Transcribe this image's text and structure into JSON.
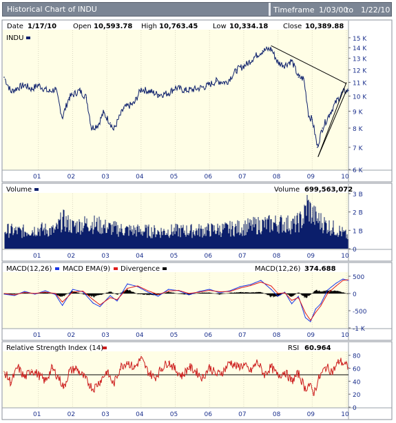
{
  "window": {
    "title": "Historical Chart of INDU",
    "timeframe_label": "Timeframe",
    "timeframe_from": "1/03/00",
    "timeframe_to_word": "to",
    "timeframe_end": "1/22/10"
  },
  "quote": {
    "date_label": "Date",
    "date": "1/17/10",
    "open_label": "Open",
    "open": "10,593.78",
    "high_label": "High",
    "high": "10,763.45",
    "low_label": "Low",
    "low": "10,334.18",
    "close_label": "Close",
    "close": "10,389.88"
  },
  "colors": {
    "plot_bg": "#fffee6",
    "price": "#0b1e6b",
    "volume": "#0b1e6b",
    "macd": "#1a36e6",
    "macd_ema": "#e01b1b",
    "divergence": "#000000",
    "rsi": "#cc1b1b",
    "panel_border": "#8a8f98"
  },
  "chart_data": [
    {
      "type": "line",
      "title": "INDU",
      "legend": [
        "INDU"
      ],
      "x_ticks": [
        "01",
        "02",
        "03",
        "04",
        "05",
        "06",
        "07",
        "08",
        "09",
        "10"
      ],
      "y_scale": "log",
      "ylim": [
        6000,
        15500
      ],
      "y_ticks": [
        "15 K",
        "14 K",
        "13 K",
        "12 K",
        "11 K",
        "10 K",
        "9 K",
        "8 K",
        "7 K",
        "6 K"
      ],
      "y_tick_values": [
        15000,
        14000,
        13000,
        12000,
        11000,
        10000,
        9000,
        8000,
        7000,
        6000
      ],
      "series": [
        {
          "name": "INDU",
          "x": [
            2000.0,
            2000.2,
            2000.4,
            2000.6,
            2000.8,
            2001.0,
            2001.3,
            2001.5,
            2001.7,
            2001.9,
            2002.2,
            2002.4,
            2002.55,
            2002.75,
            2002.9,
            2003.1,
            2003.2,
            2003.5,
            2003.8,
            2004.0,
            2004.3,
            2004.5,
            2004.8,
            2005.0,
            2005.3,
            2005.6,
            2005.9,
            2006.2,
            2006.5,
            2006.8,
            2007.1,
            2007.3,
            2007.55,
            2007.8,
            2008.0,
            2008.2,
            2008.4,
            2008.6,
            2008.75,
            2008.9,
            2009.0,
            2009.15,
            2009.3,
            2009.5,
            2009.7,
            2009.9,
            2010.06
          ],
          "values": [
            11400,
            10300,
            10600,
            10800,
            10500,
            10800,
            10300,
            10500,
            8600,
            9900,
            10400,
            9900,
            8000,
            8200,
            8900,
            8300,
            7900,
            9200,
            9500,
            10500,
            10300,
            10100,
            10200,
            10600,
            10400,
            10500,
            10700,
            11100,
            11000,
            12000,
            12500,
            13100,
            13700,
            13900,
            12600,
            12400,
            12800,
            11400,
            11300,
            8700,
            8500,
            7000,
            8000,
            8800,
            9600,
            10300,
            10389.88
          ]
        }
      ],
      "trendlines": [
        {
          "x": [
            2007.8,
            2010.0
          ],
          "y": [
            14200,
            10900
          ]
        },
        {
          "x": [
            2009.17,
            2010.0
          ],
          "y": [
            6550,
            11000
          ]
        },
        {
          "x": [
            2009.17,
            2010.0
          ],
          "y": [
            6550,
            10400
          ]
        }
      ]
    },
    {
      "type": "bar",
      "title": "Volume",
      "legend": [
        "Volume"
      ],
      "readout_label": "Volume",
      "readout_value": "699,563,072",
      "ylim": [
        0,
        3000000000
      ],
      "y_ticks": [
        "3 B",
        "2 B",
        "1 B",
        "0"
      ],
      "y_tick_values": [
        3000000000,
        2000000000,
        1000000000,
        0
      ],
      "x_ticks": [
        "01",
        "02",
        "03",
        "04",
        "05",
        "06",
        "07",
        "08",
        "09",
        "10"
      ],
      "series": [
        {
          "name": "Volume",
          "x": [
            2000.0,
            2000.5,
            2001.0,
            2001.5,
            2001.7,
            2002.0,
            2002.5,
            2002.8,
            2003.0,
            2003.5,
            2004.0,
            2004.5,
            2005.0,
            2005.5,
            2006.0,
            2006.5,
            2007.0,
            2007.5,
            2007.8,
            2008.0,
            2008.5,
            2008.75,
            2008.85,
            2009.0,
            2009.2,
            2009.5,
            2009.8,
            2010.06
          ],
          "values": [
            1100000000,
            1000000000,
            1150000000,
            1050000000,
            1700000000,
            1300000000,
            1500000000,
            1350000000,
            1250000000,
            1100000000,
            1050000000,
            1000000000,
            1050000000,
            1050000000,
            1100000000,
            1150000000,
            1250000000,
            1400000000,
            1450000000,
            1500000000,
            1400000000,
            1800000000,
            2600000000,
            2000000000,
            1650000000,
            1300000000,
            1050000000,
            699563072
          ]
        }
      ]
    },
    {
      "type": "line",
      "title": "MACD(12,26)",
      "legend": [
        "MACD(12,26)",
        "MACD EMA(9)",
        "Divergence"
      ],
      "readout_label": "MACD(12,26)",
      "readout_value": "374.688",
      "ylim": [
        -1000,
        600
      ],
      "y_ticks": [
        "500",
        "0",
        "-500",
        "-1 K"
      ],
      "y_tick_values": [
        500,
        0,
        -500,
        -1000
      ],
      "x_ticks": [
        "01",
        "02",
        "03",
        "04",
        "05",
        "06",
        "07",
        "08",
        "09",
        "10"
      ],
      "x": [
        2000.0,
        2000.3,
        2000.6,
        2000.9,
        2001.2,
        2001.5,
        2001.7,
        2002.0,
        2002.3,
        2002.6,
        2002.8,
        2003.1,
        2003.3,
        2003.6,
        2003.9,
        2004.2,
        2004.5,
        2004.8,
        2005.1,
        2005.4,
        2005.7,
        2006.0,
        2006.3,
        2006.6,
        2006.9,
        2007.2,
        2007.5,
        2007.8,
        2008.0,
        2008.2,
        2008.4,
        2008.6,
        2008.8,
        2008.95,
        2009.1,
        2009.25,
        2009.45,
        2009.7,
        2009.9,
        2010.06
      ],
      "series": [
        {
          "name": "MACD(12,26)",
          "values": [
            -20,
            -60,
            60,
            -20,
            80,
            -30,
            -350,
            120,
            50,
            -280,
            -380,
            -60,
            -220,
            280,
            200,
            40,
            -80,
            120,
            80,
            -40,
            60,
            120,
            20,
            80,
            200,
            260,
            380,
            120,
            -80,
            40,
            -300,
            -80,
            -700,
            -820,
            -450,
            -300,
            100,
            300,
            420,
            374.688
          ]
        },
        {
          "name": "MACD EMA(9)",
          "values": [
            0,
            -40,
            30,
            0,
            40,
            0,
            -250,
            40,
            70,
            -180,
            -330,
            -120,
            -180,
            150,
            220,
            80,
            -30,
            70,
            90,
            0,
            40,
            90,
            50,
            60,
            160,
            230,
            330,
            220,
            0,
            20,
            -200,
            -120,
            -560,
            -780,
            -550,
            -360,
            0,
            220,
            380,
            400
          ]
        },
        {
          "name": "Divergence",
          "values": [
            -20,
            -20,
            30,
            -20,
            40,
            -30,
            -100,
            80,
            -20,
            -100,
            -50,
            60,
            -40,
            130,
            -20,
            -40,
            -50,
            50,
            -10,
            -40,
            20,
            30,
            -30,
            20,
            40,
            30,
            50,
            -100,
            -80,
            20,
            -100,
            40,
            -140,
            -40,
            100,
            60,
            100,
            80,
            40,
            -25
          ]
        }
      ]
    },
    {
      "type": "line",
      "title": "Relative Strength Index (14)",
      "legend": [
        "Relative Strength Index (14)"
      ],
      "readout_label": "RSI",
      "readout_value": "60.964",
      "ylim": [
        0,
        85
      ],
      "y_ticks": [
        "80",
        "60",
        "40",
        "20",
        "0"
      ],
      "y_tick_values": [
        80,
        60,
        40,
        20,
        0
      ],
      "reference_line": 50,
      "x_ticks": [
        "01",
        "02",
        "03",
        "04",
        "05",
        "06",
        "07",
        "08",
        "09",
        "10"
      ],
      "series": [
        {
          "name": "Relative Strength Index (14)",
          "x": [
            2000.0,
            2000.2,
            2000.4,
            2000.6,
            2000.8,
            2001.0,
            2001.2,
            2001.4,
            2001.6,
            2001.75,
            2001.9,
            2002.1,
            2002.3,
            2002.5,
            2002.6,
            2002.8,
            2003.0,
            2003.2,
            2003.4,
            2003.6,
            2003.8,
            2004.0,
            2004.2,
            2004.4,
            2004.6,
            2004.8,
            2005.0,
            2005.2,
            2005.4,
            2005.6,
            2005.8,
            2006.0,
            2006.2,
            2006.4,
            2006.6,
            2006.8,
            2007.0,
            2007.2,
            2007.4,
            2007.6,
            2007.8,
            2008.0,
            2008.2,
            2008.4,
            2008.6,
            2008.8,
            2008.9,
            2009.05,
            2009.2,
            2009.4,
            2009.6,
            2009.8,
            2010.06
          ],
          "values": [
            55,
            38,
            62,
            45,
            58,
            50,
            40,
            60,
            45,
            30,
            55,
            60,
            48,
            35,
            28,
            40,
            55,
            35,
            62,
            70,
            60,
            75,
            55,
            45,
            60,
            70,
            58,
            48,
            62,
            55,
            45,
            62,
            50,
            55,
            70,
            62,
            65,
            55,
            70,
            50,
            62,
            48,
            55,
            40,
            52,
            28,
            35,
            22,
            45,
            62,
            55,
            72,
            60.964
          ]
        }
      ]
    }
  ]
}
